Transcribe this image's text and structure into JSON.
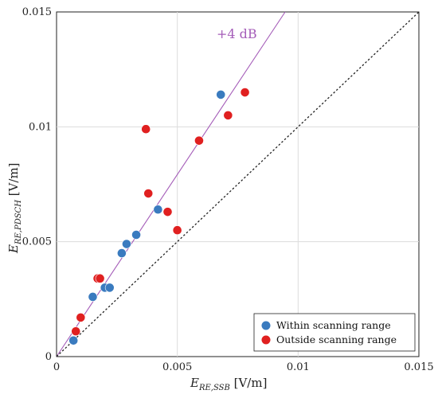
{
  "chart_data": {
    "type": "scatter",
    "xlim": [
      0,
      0.015
    ],
    "ylim": [
      0,
      0.015
    ],
    "xticks": [
      "0",
      "0.005",
      "0.01",
      "0.015"
    ],
    "yticks": [
      "0",
      "0.005",
      "0.01",
      "0.015"
    ],
    "xlabel": {
      "main": "E",
      "sub": "RE,SSB",
      "unit": " [V/m]"
    },
    "ylabel": {
      "main": "E",
      "sub": "RE,PDSCH",
      "unit": " [V/m]"
    },
    "grid": true,
    "legend_position": "bottom-right",
    "series": [
      {
        "name": "Within scanning range",
        "color": "#3a7bbf",
        "x": [
          0.0007,
          0.0015,
          0.002,
          0.0022,
          0.0027,
          0.0029,
          0.0033,
          0.0042,
          0.0068
        ],
        "y": [
          0.0007,
          0.0026,
          0.003,
          0.003,
          0.0045,
          0.0049,
          0.0053,
          0.0064,
          0.0114
        ]
      },
      {
        "name": "Outside scanning range",
        "color": "#e02020",
        "x": [
          0.0008,
          0.001,
          0.0017,
          0.0018,
          0.0037,
          0.0038,
          0.0046,
          0.005,
          0.0059,
          0.0071,
          0.0078
        ],
        "y": [
          0.0011,
          0.0017,
          0.0034,
          0.0034,
          0.0099,
          0.0071,
          0.0063,
          0.0055,
          0.0094,
          0.0105,
          0.0115
        ]
      }
    ],
    "reference_lines": [
      {
        "label": "+4 dB",
        "slope": 1.585,
        "color": "#a45cb8",
        "style": "solid"
      },
      {
        "label": "",
        "slope": 1.0,
        "color": "#222222",
        "style": "dotted"
      }
    ]
  }
}
